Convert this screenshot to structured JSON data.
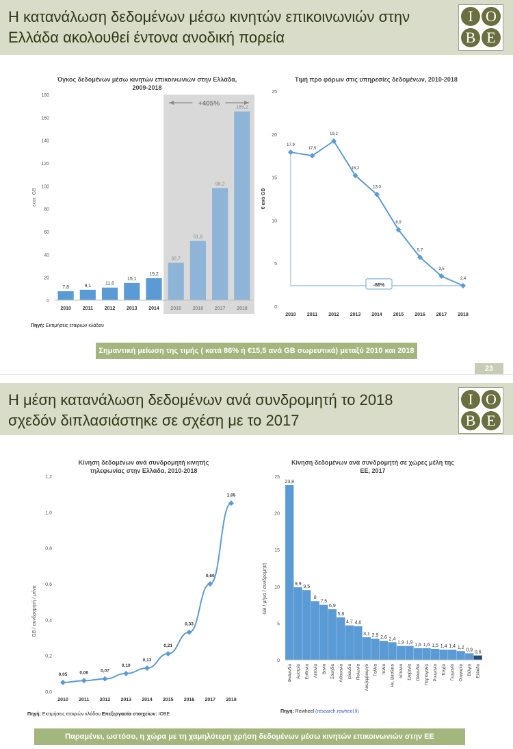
{
  "slide1": {
    "title": "Η κατανάλωση δεδομένων μέσω κινητών επικοινωνιών στην Ελλάδα ακολουθεί έντονα ανοδική πορεία",
    "logo_letters": [
      "I",
      "O",
      "B",
      "E"
    ],
    "chart_left_caption": "Όγκος δεδομένων μέσω κινητών επικοινωνιών στην Ελλάδα, 2009-2018",
    "chart_left_ylabel": "εκατ. GB",
    "growth_label": "+405%",
    "source_label": "Πηγή:",
    "source_text": "Εκτιμήσεις εταιριών κλάδου",
    "chart_right_caption": "Τιμή προ φόρων στις υπηρεσίες δεδομένων, 2010-2018",
    "chart_right_ylabel": "€ ανά GB",
    "drop_label": "-86%",
    "banner": "Σημαντική μείωση της τιμής ( κατά 86% ή €15,5 ανά GB σωρευτικά) μεταξύ 2010 και 2018",
    "page_number": "23"
  },
  "slide2": {
    "title": "Η μέση κατανάλωση δεδομένων ανά συνδρομητή το 2018 σχεδόν διπλασιάστηκε σε σχέση με το 2017",
    "chart_left_caption": "Κίνηση δεδομένων ανά συνδρομητή κινητής τηλεφωνίας στην Ελλάδα, 2010-2018",
    "chart_left_ylabel": "GB / συνδρομητή / μήνα",
    "source_left_label": "Πηγή:",
    "source_left_text": "Εκτιμήσεις εταιριών κλάδου",
    "source_left_label2": "Επεξεργασία στοιχείων:",
    "source_left_text2": "ΙΟΒΕ",
    "chart_right_caption": "Κίνηση δεδομένων ανά συνδρομητή σε χώρες μέλη της ΕΕ, 2017",
    "chart_right_ylabel": "GB / μήνα / συνδρομητή",
    "source_right_label": "Πηγή:",
    "source_right_text": "Rewheel",
    "source_right_link": "(research.rewheel.fi)",
    "banner": "Παραμένει, ωστόσο, η χώρα με τη χαμηλότερη χρήση δεδομένων μέσω κινητών επικοινωνιών στην ΕΕ"
  },
  "chart_data": [
    {
      "type": "bar",
      "title": "Όγκος δεδομένων μέσω κινητών επικοινωνιών στην Ελλάδα, 2009-2018",
      "ylabel": "εκατ. GB",
      "categories": [
        "2010",
        "2011",
        "2012",
        "2013",
        "2014",
        "2015",
        "2016",
        "2017",
        "2018"
      ],
      "values": [
        7.8,
        9.1,
        11.0,
        15.1,
        19.2,
        32.7,
        51.8,
        98.2,
        165.2
      ],
      "value_labels": [
        "7,8",
        "9,1",
        "11,0",
        "15,1",
        "19,2",
        "32,7",
        "51,8",
        "98,2",
        "165,2"
      ],
      "ylim": [
        0,
        180
      ],
      "yticks": [
        0,
        20,
        40,
        60,
        80,
        100,
        120,
        140,
        160,
        180
      ],
      "highlight_from": "2015",
      "colors": {
        "bar": "#5b9bd5",
        "bar_highlight": "#8eb4d8",
        "shade": "#d9d9d9"
      }
    },
    {
      "type": "line",
      "title": "Τιμή προ φόρων στις υπηρεσίες δεδομένων, 2010-2018",
      "ylabel": "€ ανά GB",
      "x": [
        "2010",
        "2011",
        "2012",
        "2013",
        "2014",
        "2015",
        "2016",
        "2017",
        "2018"
      ],
      "values": [
        17.9,
        17.5,
        19.2,
        15.2,
        13.0,
        8.9,
        5.7,
        3.5,
        2.4
      ],
      "value_labels": [
        "17,9",
        "17,5",
        "19,2",
        "15,2",
        "13,0",
        "8,9",
        "5,7",
        "3,5",
        "2,4"
      ],
      "ylim": [
        0,
        25
      ],
      "yticks": [
        0,
        5,
        10,
        15,
        20,
        25
      ],
      "colors": {
        "line": "#5b9bd5"
      }
    },
    {
      "type": "line",
      "title": "Κίνηση δεδομένων ανά συνδρομητή κινητής τηλεφωνίας στην Ελλάδα, 2010-2018",
      "ylabel": "GB / συνδρομητή / μήνα",
      "x": [
        "2010",
        "2011",
        "2012",
        "2013",
        "2014",
        "2015",
        "2016",
        "2017",
        "2018"
      ],
      "values": [
        0.05,
        0.06,
        0.07,
        0.1,
        0.13,
        0.21,
        0.33,
        0.6,
        1.05
      ],
      "value_labels": [
        "0,05",
        "0,06",
        "0,07",
        "0,10",
        "0,13",
        "0,21",
        "0,33",
        "0,60",
        "1,05"
      ],
      "ylim": [
        0,
        1.2
      ],
      "yticks": [
        0,
        0.2,
        0.4,
        0.6,
        0.8,
        1.0,
        1.2
      ],
      "ytick_labels": [
        "0,0",
        "0,2",
        "0,4",
        "0,6",
        "0,8",
        "1,0",
        "1,2"
      ],
      "colors": {
        "line": "#5b9bd5"
      }
    },
    {
      "type": "bar",
      "title": "Κίνηση δεδομένων ανά συνδρομητή σε χώρες μέλη της ΕΕ, 2017",
      "ylabel": "GB / μήνα / συνδρομητή",
      "categories": [
        "Φινλανδία",
        "Αυστρία",
        "Εσθονία",
        "Λετονία",
        "Δανία",
        "Σουηδία",
        "Λιθουανία",
        "Ιρλανδία",
        "Πολωνία",
        "Λουξεμβούργο",
        "Γαλλία",
        "Ιταλία",
        "Ην. Βασίλειο",
        "Ισπανία",
        "Σλοβενία",
        "Ολλανδία",
        "Πορτογαλία",
        "Ρουμανία",
        "Τσεχία",
        "Γερμανία",
        "Ουγγαρία",
        "Βέλγιο",
        "Ελλάδα"
      ],
      "values": [
        23.8,
        9.9,
        9.5,
        8,
        7.5,
        6.9,
        5.8,
        4.7,
        4.6,
        3.1,
        2.9,
        2.6,
        2.4,
        1.9,
        1.9,
        1.6,
        1.6,
        1.5,
        1.4,
        1.4,
        1.2,
        0.9,
        0.6
      ],
      "value_labels": [
        "23,8",
        "9,9",
        "9,5",
        "8",
        "7,5",
        "6,9",
        "5,8",
        "4,7",
        "4,6",
        "3,1",
        "2,9",
        "2,6",
        "2,4",
        "1,9",
        "1,9",
        "1,6",
        "1,6",
        "1,5",
        "1,4",
        "1,4",
        "1,2",
        "0,9",
        "0,6"
      ],
      "ylim": [
        0,
        25
      ],
      "yticks": [
        0,
        5,
        10,
        15,
        20,
        25
      ],
      "highlight_category": "Ελλάδα",
      "colors": {
        "bar": "#5b9bd5",
        "bar_highlight": "#1f4e79"
      }
    }
  ]
}
